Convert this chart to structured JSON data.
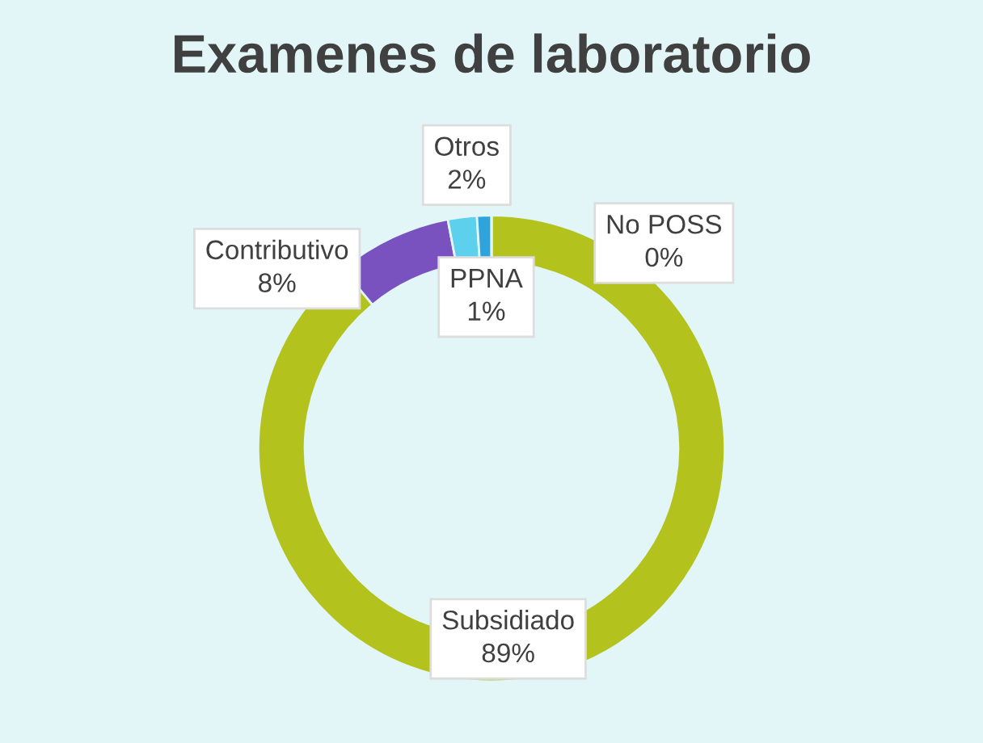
{
  "chart_data": {
    "type": "donut",
    "title": "Examenes de laboratorio",
    "categories": [
      "Subsidiado",
      "Contributivo",
      "Otros",
      "PPNA",
      "No POSS"
    ],
    "values": [
      89,
      8,
      2,
      1,
      0
    ],
    "value_labels": [
      "89%",
      "8%",
      "2%",
      "1%",
      "0%"
    ],
    "colors": [
      "#b4c21e",
      "#7a52c0",
      "#5cd0ec",
      "#2fa4dc",
      "#3a78d0"
    ],
    "legend": false
  }
}
